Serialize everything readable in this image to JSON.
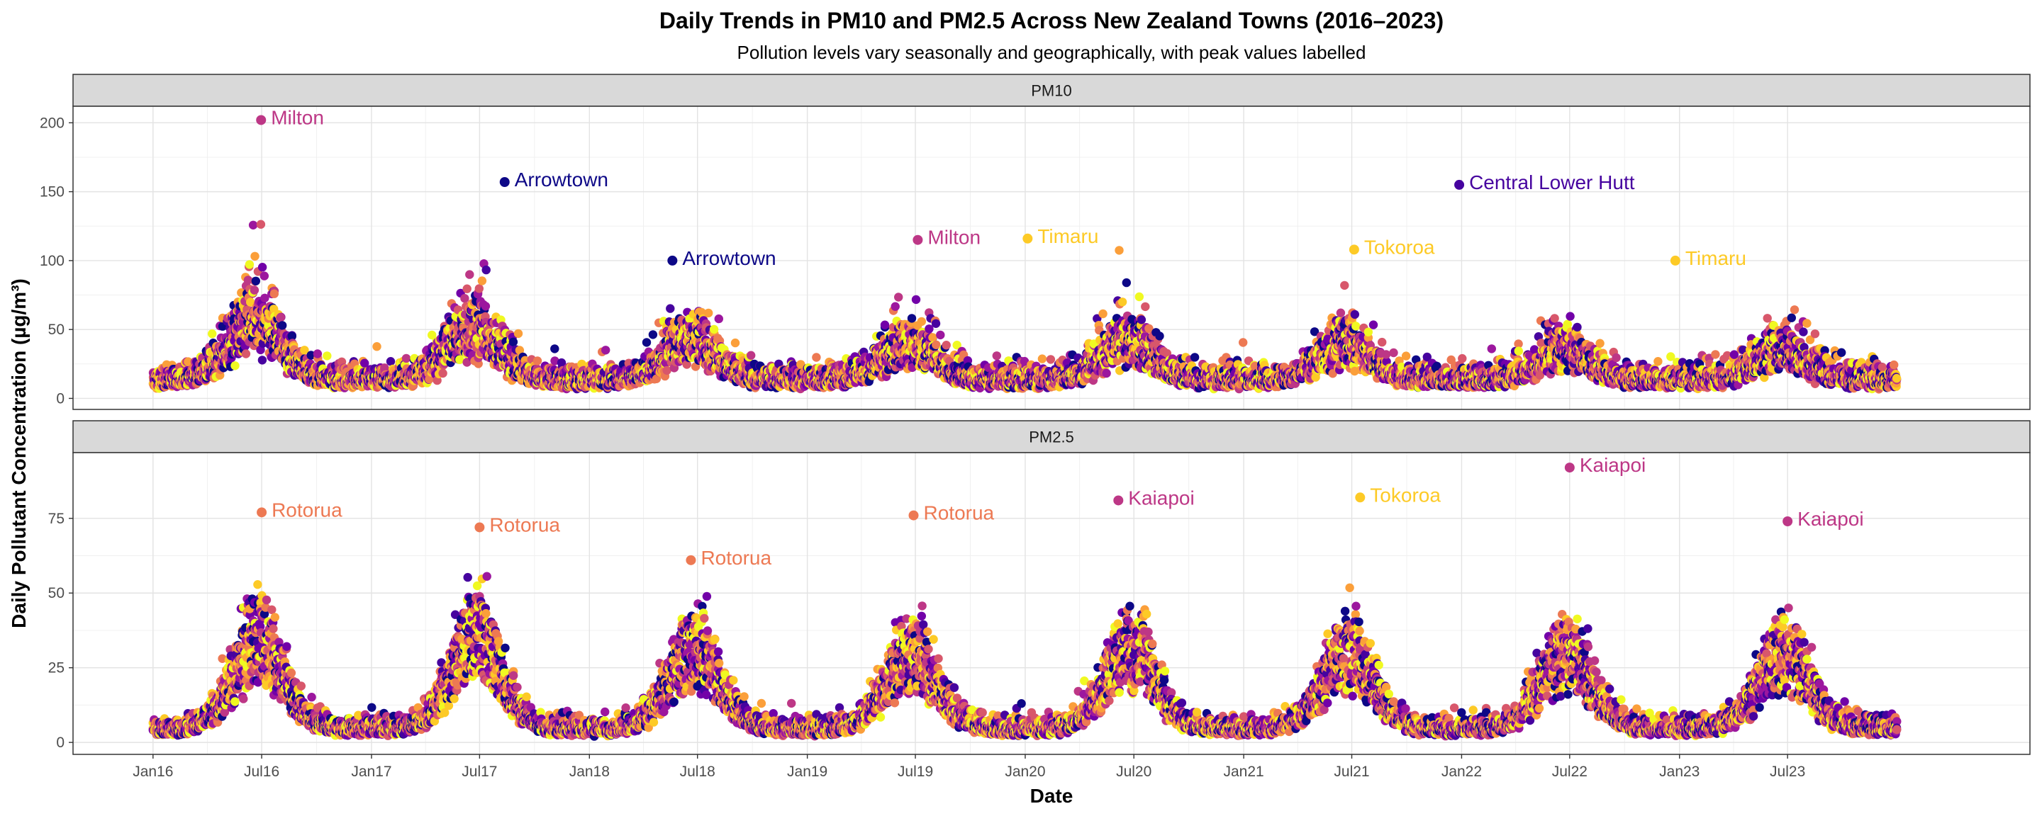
{
  "chart_data": {
    "type": "scatter",
    "title": "Daily Trends in PM10 and PM2.5 Across New Zealand Towns (2016–2023)",
    "subtitle": "Pollution levels vary seasonally and geographically, with peak values labelled",
    "xlabel": "Date",
    "ylabel": "Daily Pollutant Concentration (µg/m³)",
    "x_ticks": [
      "Jan16",
      "Jul16",
      "Jan17",
      "Jul17",
      "Jan18",
      "Jul18",
      "Jan19",
      "Jul19",
      "Jan20",
      "Jul20",
      "Jan21",
      "Jul21",
      "Jan22",
      "Jul22",
      "Jan23",
      "Jul23"
    ],
    "xlim": [
      "2015-08-20",
      "2024-08-10"
    ],
    "data_range": [
      "2016-01-01",
      "2023-12-31"
    ],
    "grid": true,
    "color_palette": [
      "#0d0887",
      "#46039f",
      "#7201a8",
      "#9c179e",
      "#bd3786",
      "#d8576b",
      "#ed7953",
      "#fb9f3a",
      "#fdca26",
      "#f0f921"
    ],
    "panels": [
      {
        "name": "PM10",
        "y_ticks": [
          0,
          50,
          100,
          150,
          200
        ],
        "ylim": [
          -8,
          212
        ],
        "base_level": 12,
        "noise": 22,
        "seasonal_peaks": [
          {
            "date": "2016-06-20",
            "height": 55
          },
          {
            "date": "2017-06-20",
            "height": 45
          },
          {
            "date": "2018-06-20",
            "height": 35
          },
          {
            "date": "2019-06-20",
            "height": 30
          },
          {
            "date": "2020-06-20",
            "height": 35
          },
          {
            "date": "2021-06-20",
            "height": 30
          },
          {
            "date": "2022-06-20",
            "height": 25
          },
          {
            "date": "2023-06-20",
            "height": 25
          }
        ],
        "labelled_peaks": [
          {
            "date": "2016-06-30",
            "value": 202,
            "town": "Milton",
            "color": "#bd3786"
          },
          {
            "date": "2017-08-12",
            "value": 157,
            "town": "Arrowtown",
            "color": "#0d0887"
          },
          {
            "date": "2018-05-20",
            "value": 100,
            "town": "Arrowtown",
            "color": "#0d0887"
          },
          {
            "date": "2019-07-05",
            "value": 115,
            "town": "Milton",
            "color": "#bd3786"
          },
          {
            "date": "2020-01-05",
            "value": 116,
            "town": "Timaru",
            "color": "#fdca26"
          },
          {
            "date": "2021-07-05",
            "value": 108,
            "town": "Tokoroa",
            "color": "#fdca26"
          },
          {
            "date": "2021-12-28",
            "value": 155,
            "town": "Central Lower Hutt",
            "color": "#46039f"
          },
          {
            "date": "2022-12-25",
            "value": 100,
            "town": "Timaru",
            "color": "#fdca26"
          }
        ]
      },
      {
        "name": "PM2.5",
        "y_ticks": [
          0,
          25,
          50,
          75
        ],
        "ylim": [
          -4,
          97
        ],
        "base_level": 4,
        "noise": 8,
        "seasonal_peaks": [
          {
            "date": "2016-06-25",
            "height": 40
          },
          {
            "date": "2017-06-25",
            "height": 42
          },
          {
            "date": "2018-06-25",
            "height": 36
          },
          {
            "date": "2019-06-25",
            "height": 34
          },
          {
            "date": "2020-06-25",
            "height": 36
          },
          {
            "date": "2021-06-25",
            "height": 34
          },
          {
            "date": "2022-06-25",
            "height": 34
          },
          {
            "date": "2023-06-25",
            "height": 33
          }
        ],
        "labelled_peaks": [
          {
            "date": "2016-07-01",
            "value": 77,
            "town": "Rotorua",
            "color": "#ed7953"
          },
          {
            "date": "2017-07-01",
            "value": 72,
            "town": "Rotorua",
            "color": "#ed7953"
          },
          {
            "date": "2018-06-20",
            "value": 61,
            "town": "Rotorua",
            "color": "#ed7953"
          },
          {
            "date": "2019-06-28",
            "value": 76,
            "town": "Rotorua",
            "color": "#ed7953"
          },
          {
            "date": "2020-06-05",
            "value": 81,
            "town": "Kaiapoi",
            "color": "#bd3786"
          },
          {
            "date": "2021-07-15",
            "value": 82,
            "town": "Tokoroa",
            "color": "#fdca26"
          },
          {
            "date": "2022-07-01",
            "value": 92,
            "town": "Kaiapoi",
            "color": "#bd3786"
          },
          {
            "date": "2023-07-01",
            "value": 74,
            "town": "Kaiapoi",
            "color": "#bd3786"
          }
        ]
      }
    ]
  }
}
